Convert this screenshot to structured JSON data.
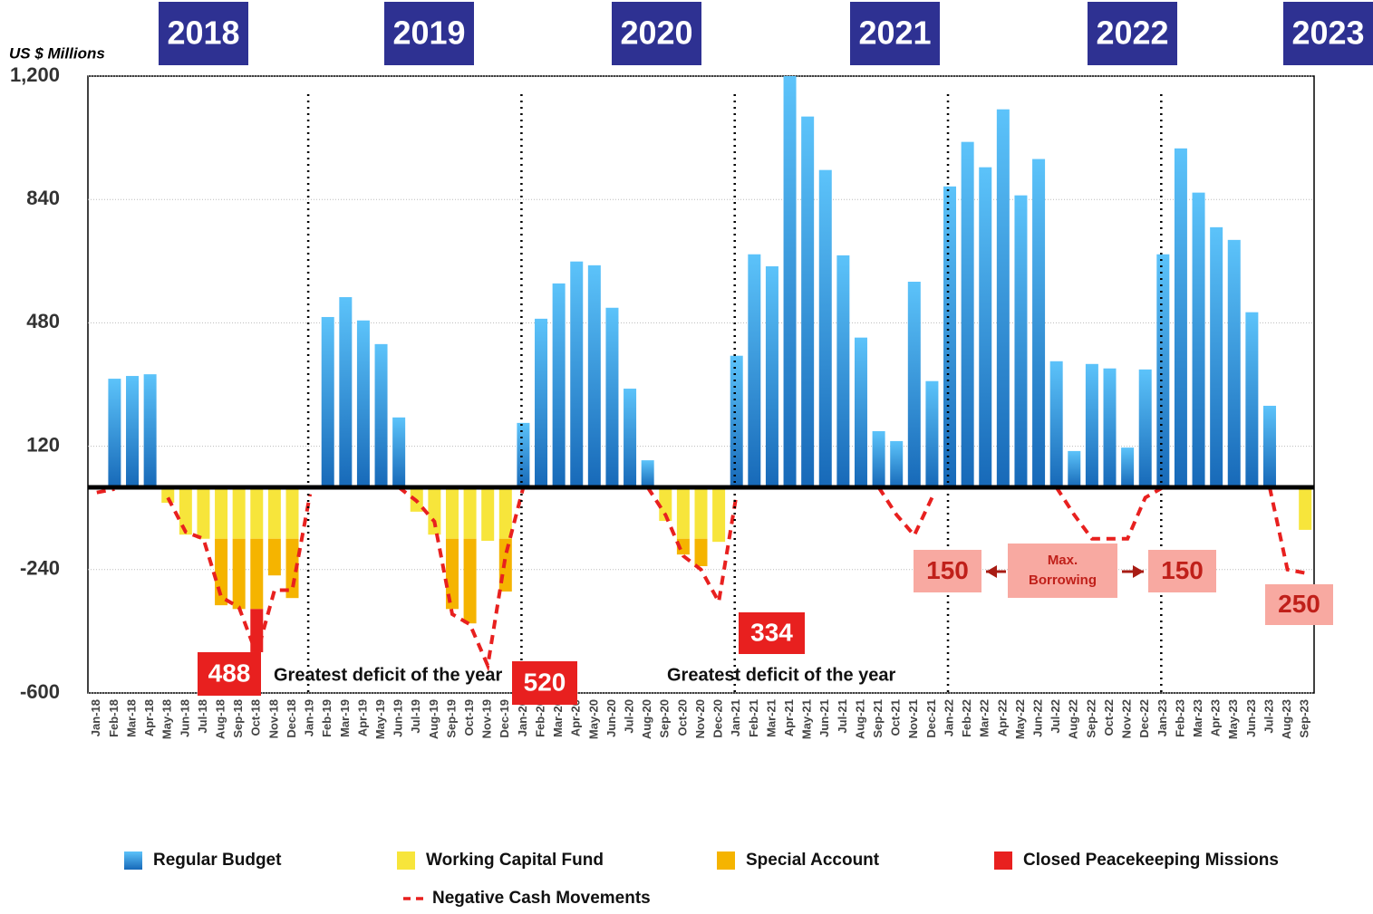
{
  "chart_data": {
    "type": "bar",
    "y_axis_label": "US $ Millions",
    "year_labels": [
      "2018",
      "2019",
      "2020",
      "2021",
      "2022",
      "2023"
    ],
    "annotations": [
      "488",
      "Greatest deficit of the year",
      "520",
      "Greatest deficit of the year",
      "334",
      "150",
      "Max. Borrowing",
      "150",
      "250"
    ],
    "ylim": [
      -600,
      1200
    ],
    "yticks": [
      {
        "value": 1200,
        "label": "1,200"
      },
      840,
      480,
      120,
      -240,
      -600
    ],
    "grid": true,
    "categories": [
      "Jan-18",
      "Feb-18",
      "Mar-18",
      "Apr-18",
      "May-18",
      "Jun-18",
      "Jul-18",
      "Aug-18",
      "Sep-18",
      "Oct-18",
      "Nov-18",
      "Dec-18",
      "Jan-19",
      "Feb-19",
      "Mar-19",
      "Apr-19",
      "May-19",
      "Jun-19",
      "Jul-19",
      "Aug-19",
      "Sep-19",
      "Oct-19",
      "Nov-19",
      "Dec-19",
      "Jan-20",
      "Feb-20",
      "Mar-20",
      "Apr-20",
      "May-20",
      "Jun-20",
      "Jul-20",
      "Aug-20",
      "Sep-20",
      "Oct-20",
      "Nov-20",
      "Dec-20",
      "Jan-21",
      "Feb-21",
      "Mar-21",
      "Apr-21",
      "May-21",
      "Jun-21",
      "Jul-21",
      "Aug-21",
      "Sep-21",
      "Oct-21",
      "Nov-21",
      "Dec-21",
      "Jan-22",
      "Feb-22",
      "Mar-22",
      "Apr-22",
      "May-22",
      "Jun-22",
      "Jul-22",
      "Aug-22",
      "Sep-22",
      "Oct-22",
      "Nov-22",
      "Dec-22",
      "Jan-23",
      "Feb-23",
      "Mar-23",
      "Apr-23",
      "May-23",
      "Jun-23",
      "Jul-23",
      "Aug-23",
      "Sep-23"
    ],
    "series": [
      {
        "name": "Regular Budget",
        "type": "bar",
        "color": "#2a8fde",
        "values": [
          0,
          317,
          325,
          330,
          0,
          0,
          0,
          0,
          0,
          0,
          0,
          0,
          0,
          497,
          555,
          487,
          418,
          204,
          0,
          0,
          0,
          0,
          0,
          0,
          188,
          492,
          595,
          659,
          648,
          524,
          288,
          79,
          0,
          0,
          0,
          0,
          384,
          680,
          645,
          1200,
          1082,
          926,
          677,
          437,
          164,
          135,
          600,
          310,
          878,
          1008,
          934,
          1103,
          852,
          958,
          368,
          106,
          360,
          347,
          116,
          344,
          680,
          989,
          860,
          759,
          722,
          511,
          238,
          0,
          0
        ]
      },
      {
        "name": "Working Capital Fund",
        "type": "bar",
        "color": "#f7e53b",
        "values": [
          0,
          0,
          0,
          0,
          -45,
          -138,
          -150,
          -150,
          -150,
          -150,
          -150,
          -150,
          0,
          0,
          0,
          0,
          0,
          0,
          -71,
          -138,
          -150,
          -150,
          -156,
          -150,
          0,
          0,
          0,
          0,
          0,
          0,
          0,
          0,
          -98,
          -150,
          -150,
          -159,
          0,
          0,
          0,
          0,
          0,
          0,
          0,
          0,
          0,
          0,
          0,
          0,
          0,
          0,
          0,
          0,
          0,
          0,
          0,
          0,
          0,
          0,
          0,
          0,
          0,
          0,
          0,
          0,
          0,
          0,
          0,
          0,
          -124
        ]
      },
      {
        "name": "Special Account",
        "type": "bar",
        "color": "#f5b400",
        "values": [
          0,
          0,
          0,
          0,
          0,
          0,
          0,
          -194,
          -205,
          -205,
          -107,
          -173,
          0,
          0,
          0,
          0,
          0,
          0,
          0,
          0,
          -205,
          -247,
          0,
          -154,
          0,
          0,
          0,
          0,
          0,
          0,
          0,
          0,
          0,
          -46,
          -80,
          0,
          0,
          0,
          0,
          0,
          0,
          0,
          0,
          0,
          0,
          0,
          0,
          0,
          0,
          0,
          0,
          0,
          0,
          0,
          0,
          0,
          0,
          0,
          0,
          0,
          0,
          0,
          0,
          0,
          0,
          0,
          0,
          0,
          0
        ]
      },
      {
        "name": "Closed Peacekeeping Missions",
        "type": "bar",
        "color": "#e8201f",
        "values": [
          0,
          0,
          0,
          0,
          0,
          0,
          0,
          0,
          0,
          -126,
          0,
          0,
          0,
          0,
          0,
          0,
          0,
          0,
          0,
          0,
          0,
          0,
          0,
          0,
          0,
          0,
          0,
          0,
          0,
          0,
          0,
          0,
          0,
          0,
          0,
          0,
          0,
          0,
          0,
          0,
          0,
          0,
          0,
          0,
          0,
          0,
          0,
          0,
          0,
          0,
          0,
          0,
          0,
          0,
          0,
          0,
          0,
          0,
          0,
          0,
          0,
          0,
          0,
          0,
          0,
          0,
          0,
          0,
          0
        ]
      },
      {
        "name": "Negative Cash Movements",
        "type": "line",
        "color": "#e8201f",
        "values": [
          -15,
          -5,
          null,
          null,
          -30,
          -130,
          -150,
          -320,
          -350,
          -488,
          -300,
          -300,
          -20,
          null,
          null,
          null,
          null,
          0,
          -40,
          -100,
          -370,
          -400,
          -520,
          -200,
          0,
          null,
          null,
          null,
          null,
          null,
          null,
          0,
          -80,
          -200,
          -240,
          -334,
          -20,
          null,
          null,
          null,
          null,
          null,
          null,
          null,
          0,
          -80,
          -140,
          -30,
          null,
          null,
          null,
          null,
          null,
          null,
          0,
          -80,
          -150,
          -150,
          -150,
          -30,
          0,
          null,
          null,
          null,
          null,
          null,
          0,
          -240,
          -250
        ]
      }
    ]
  }
}
